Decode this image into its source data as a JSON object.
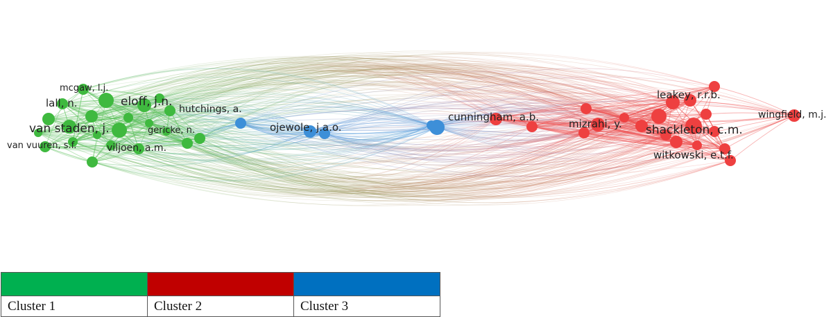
{
  "network": {
    "clusters": [
      {
        "id": 1,
        "name": "Cluster 1",
        "color": "#00B050",
        "node_color": "#3fb93f",
        "edge_color": "#5cc05c"
      },
      {
        "id": 2,
        "name": "Cluster 2",
        "color": "#C00000",
        "node_color": "#ee4040",
        "edge_color": "#f05050"
      },
      {
        "id": 3,
        "name": "Cluster 3",
        "color": "#0070C0",
        "node_color": "#3d8fd8",
        "edge_color": "#5a9ee0"
      }
    ],
    "labels": [
      {
        "text": "mcgaw, l.j.",
        "cluster": 1
      },
      {
        "text": "lall, n.",
        "cluster": 1
      },
      {
        "text": "eloff, j.n.",
        "cluster": 1
      },
      {
        "text": "hutchings, a.",
        "cluster": 1
      },
      {
        "text": "van staden, j.",
        "cluster": 1
      },
      {
        "text": "gericke, n.",
        "cluster": 1
      },
      {
        "text": "van vuuren, s.f.",
        "cluster": 1
      },
      {
        "text": "viljoen, a.m.",
        "cluster": 1
      },
      {
        "text": "ojewole, j.a.o.",
        "cluster": 3
      },
      {
        "text": "cunningham, a.b.",
        "cluster": 3
      },
      {
        "text": "leakey, r.r.b.",
        "cluster": 2
      },
      {
        "text": "mizrahi, y.",
        "cluster": 2
      },
      {
        "text": "shackleton, c.m.",
        "cluster": 2
      },
      {
        "text": "witkowski, e.t.f.",
        "cluster": 2
      },
      {
        "text": "wingfield, m.j.",
        "cluster": 2
      }
    ]
  },
  "legend": {
    "items": [
      {
        "label": "Cluster 1",
        "color": "#00B050"
      },
      {
        "label": "Cluster 2",
        "color": "#C00000"
      },
      {
        "label": "Cluster 3",
        "color": "#0070C0"
      }
    ]
  }
}
